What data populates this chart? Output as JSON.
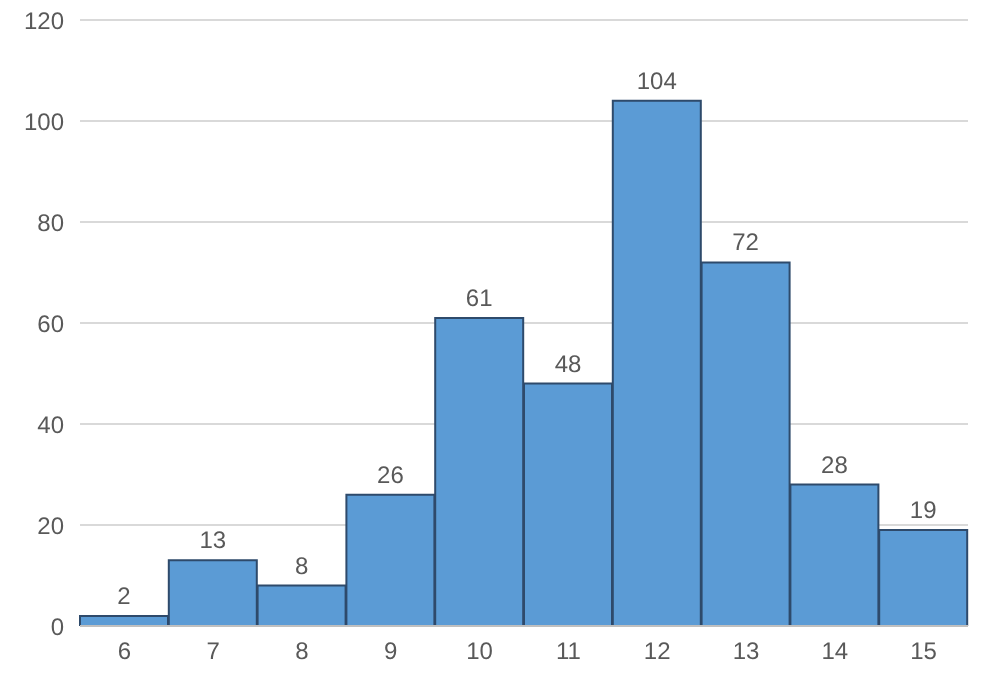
{
  "chart_data": {
    "type": "bar",
    "categories": [
      "6",
      "7",
      "8",
      "9",
      "10",
      "11",
      "12",
      "13",
      "14",
      "15"
    ],
    "values": [
      2,
      13,
      8,
      26,
      61,
      48,
      104,
      72,
      28,
      19
    ],
    "color": "#5b9bd5",
    "ylim": [
      0,
      120
    ],
    "yticks": [
      0,
      20,
      40,
      60,
      80,
      100,
      120
    ],
    "grid": "y",
    "data_labels": true
  }
}
